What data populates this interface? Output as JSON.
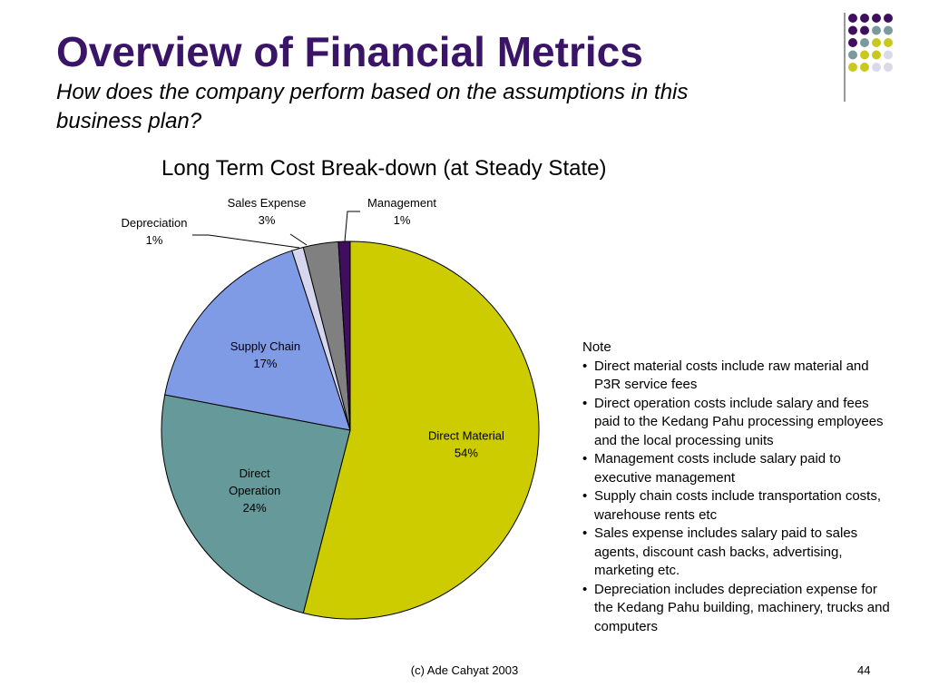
{
  "slide": {
    "title": "Overview of Financial Metrics",
    "subtitle": "How does the company perform based on the assumptions in this business plan?",
    "footer": "(c) Ade Cahyat 2003",
    "page_number": "44"
  },
  "decoration": {
    "dot_rows": [
      [
        "#3f0e5e",
        "#3f0e5e",
        "#3f0e5e",
        "#3f0e5e"
      ],
      [
        "#3f0e5e",
        "#3f0e5e",
        "#7a9a9e",
        "#7a9a9e"
      ],
      [
        "#3f0e5e",
        "#7a9a9e",
        "#c8c820",
        "#c8c820"
      ],
      [
        "#7a9a9e",
        "#c8c820",
        "#c8c820",
        "#d9d9ea"
      ],
      [
        "#c8c820",
        "#c8c820",
        "#d9d9ea",
        "#d9d9ea"
      ]
    ]
  },
  "notes": {
    "heading": "Note",
    "items": [
      "Direct material costs include raw material and P3R service fees",
      "Direct operation costs include salary and fees paid to the Kedang Pahu processing employees and the local processing units",
      "Management costs include salary paid to executive management",
      "Supply chain costs include transportation costs, warehouse rents etc",
      "Sales expense includes salary paid to sales agents, discount cash backs, advertising, marketing etc.",
      "Depreciation includes depreciation expense for the Kedang Pahu building, machinery, trucks and computers"
    ]
  },
  "chart_data": {
    "type": "pie",
    "title": "Long Term Cost Break-down (at Steady State)",
    "slices": [
      {
        "name": "Direct Material",
        "value": 54,
        "label": "54%",
        "color": "#cccc00"
      },
      {
        "name": "Direct Operation",
        "value": 24,
        "label": "24%",
        "color": "#669999"
      },
      {
        "name": "Supply Chain",
        "value": 17,
        "label": "17%",
        "color": "#7f9be6"
      },
      {
        "name": "Depreciation",
        "value": 1,
        "label": "1%",
        "color": "#d6d6ee"
      },
      {
        "name": "Sales Expense",
        "value": 3,
        "label": "3%",
        "color": "#808080"
      },
      {
        "name": "Management",
        "value": 1,
        "label": "1%",
        "color": "#3f0e5e"
      }
    ],
    "start_angle_deg": 0,
    "direction": "clockwise",
    "legend": "none"
  }
}
